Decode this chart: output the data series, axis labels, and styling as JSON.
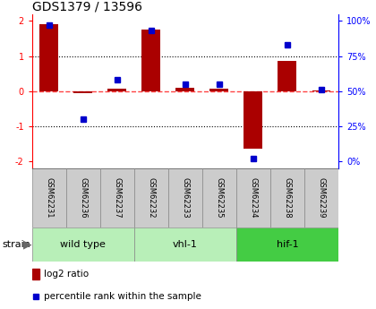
{
  "title": "GDS1379 / 13596",
  "samples": [
    "GSM62231",
    "GSM62236",
    "GSM62237",
    "GSM62232",
    "GSM62233",
    "GSM62235",
    "GSM62234",
    "GSM62238",
    "GSM62239"
  ],
  "log2_ratio": [
    1.9,
    -0.05,
    0.07,
    1.75,
    0.1,
    0.07,
    -1.65,
    0.85,
    0.02
  ],
  "percentile_rank": [
    97,
    30,
    58,
    93,
    55,
    55,
    2,
    83,
    51
  ],
  "groups": [
    {
      "label": "wild type",
      "start": 0,
      "end": 3,
      "color": "#b8efb8"
    },
    {
      "label": "vhl-1",
      "start": 3,
      "end": 6,
      "color": "#b8efb8"
    },
    {
      "label": "hif-1",
      "start": 6,
      "end": 9,
      "color": "#44cc44"
    }
  ],
  "bar_color": "#aa0000",
  "dot_color": "#0000cc",
  "zero_line_color": "#ff4444",
  "grid_line_color": "#000000",
  "sample_box_color": "#cccccc",
  "ylim": [
    -2.2,
    2.2
  ],
  "yticks_left": [
    -2,
    -1,
    0,
    1,
    2
  ],
  "yticks_right": [
    0,
    25,
    50,
    75,
    100
  ],
  "legend_red": "log2 ratio",
  "legend_blue": "percentile rank within the sample",
  "strain_label": "strain"
}
